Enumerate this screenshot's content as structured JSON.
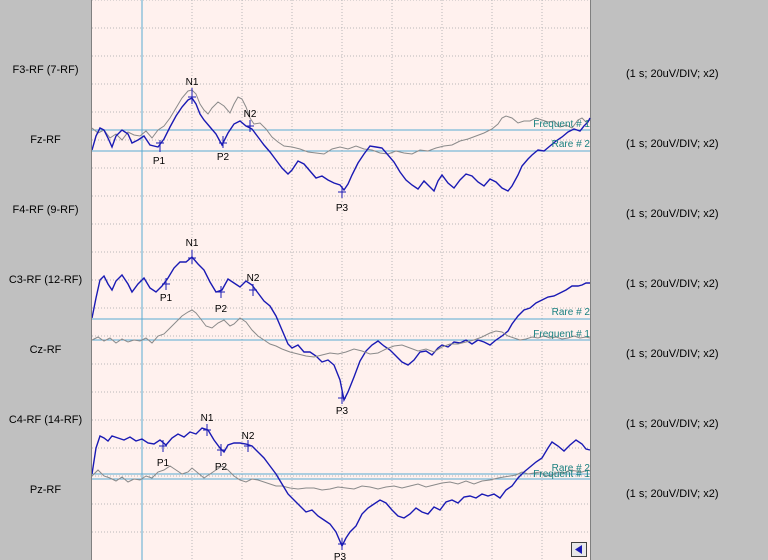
{
  "channels": [
    {
      "label": "F3-RF (7-RF)",
      "scale": "(1 s; 20uV/DIV; x2)"
    },
    {
      "label": "Fz-RF",
      "scale": "(1 s; 20uV/DIV; x2)"
    },
    {
      "label": "F4-RF (9-RF)",
      "scale": "(1 s; 20uV/DIV; x2)"
    },
    {
      "label": "C3-RF (12-RF)",
      "scale": "(1 s; 20uV/DIV; x2)"
    },
    {
      "label": "Cz-RF",
      "scale": "(1 s; 20uV/DIV; x2)"
    },
    {
      "label": "C4-RF (14-RF)",
      "scale": "(1 s; 20uV/DIV; x2)"
    },
    {
      "label": "Pz-RF",
      "scale": "(1 s; 20uV/DIV; x2)"
    }
  ],
  "panels": [
    {
      "frequent_label": "Frequent # 1",
      "rare_label": "Rare # 2",
      "peaks": {
        "P1": "P1",
        "N1": "N1",
        "P2": "P2",
        "N2": "N2",
        "P3": "P3"
      }
    },
    {
      "frequent_label": "Frequent # 1",
      "rare_label": "Rare # 2",
      "peaks": {
        "P1": "P1",
        "N1": "N1",
        "P2": "P2",
        "N2": "N2",
        "P3": "P3"
      }
    },
    {
      "frequent_label": "Frequent # 1",
      "rare_label": "Rare # 2",
      "peaks": {
        "P1": "P1",
        "N1": "N1",
        "P2": "P2",
        "N2": "N2",
        "P3": "P3"
      }
    }
  ],
  "colors": {
    "rare_trace": "#1a1ab4",
    "frequent_trace": "#8a8a8a",
    "baseline": "#5aaad2",
    "label_teal": "#1a8080",
    "grid": "#b8b8b8",
    "plot_bg": "#fff1ee"
  },
  "icons": {
    "scroll_left": "triangle-left-icon"
  }
}
